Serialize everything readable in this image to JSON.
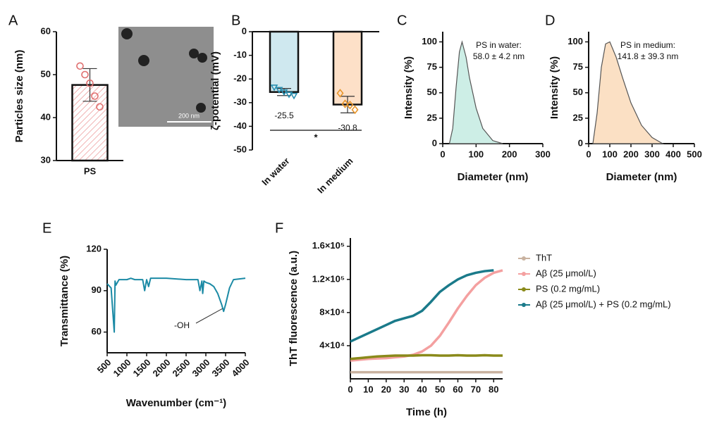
{
  "chart_data": [
    {
      "type": "bar",
      "label": "A",
      "categories": [
        "PS"
      ],
      "values": [
        47.6
      ],
      "errors": [
        3.8
      ],
      "points": [
        [
          52,
          50,
          48,
          45,
          42.5
        ]
      ],
      "markers": [
        "circle"
      ],
      "point_colors": [
        "#e07070"
      ],
      "color": "#e88080",
      "ylabel": "Particles size (nm)",
      "ylim": [
        30,
        60
      ],
      "yticks": [
        30,
        40,
        50,
        60
      ],
      "scale_bar": "200 nm"
    },
    {
      "type": "bar",
      "label": "B",
      "categories": [
        "In water",
        "In medium"
      ],
      "values": [
        -25.5,
        -30.8
      ],
      "errors": [
        1.5,
        3.5
      ],
      "points": [
        [
          -23.5,
          -24.5,
          -25.5,
          -26.5,
          -27
        ],
        [
          -26,
          -30.5,
          -31,
          -33
        ]
      ],
      "markers": [
        "triangle",
        "diamond"
      ],
      "colors": [
        "#cfe8ef",
        "#fde0c8"
      ],
      "point_colors": [
        "#2a8fb0",
        "#e8952a"
      ],
      "ylabel": "ζ-potential (mV)",
      "ylim": [
        -50,
        0
      ],
      "yticks": [
        0,
        -10,
        -20,
        -30,
        -40,
        -50
      ],
      "significance": "*"
    },
    {
      "type": "area",
      "label": "C",
      "x": [
        20,
        30,
        40,
        50,
        58,
        70,
        80,
        100,
        120,
        150,
        180
      ],
      "values": [
        0,
        15,
        55,
        90,
        100,
        85,
        65,
        35,
        15,
        3,
        0
      ],
      "color": "#cdeee6",
      "xlabel": "Diameter (nm)",
      "ylabel": "Intensity (%)",
      "xlim": [
        0,
        300
      ],
      "xticks": [
        0,
        100,
        200,
        300
      ],
      "ylim": [
        0,
        110
      ],
      "yticks": [
        0,
        25,
        50,
        75,
        100
      ],
      "annotation": [
        "PS in water:",
        "58.0 ± 4.2 nm"
      ]
    },
    {
      "type": "area",
      "label": "D",
      "x": [
        20,
        40,
        60,
        80,
        100,
        130,
        160,
        200,
        250,
        300,
        350
      ],
      "values": [
        0,
        30,
        75,
        98,
        100,
        85,
        65,
        40,
        18,
        6,
        0
      ],
      "color": "#fbe0c4",
      "xlabel": "Diameter (nm)",
      "ylabel": "Intensity (%)",
      "xlim": [
        0,
        500
      ],
      "xticks": [
        0,
        100,
        200,
        300,
        400,
        500
      ],
      "ylim": [
        0,
        110
      ],
      "yticks": [
        0,
        25,
        50,
        75,
        100
      ],
      "annotation": [
        "PS in medium:",
        "141.8 ± 39.3 nm"
      ]
    },
    {
      "type": "line",
      "label": "E",
      "x": [
        500,
        600,
        680,
        700,
        720,
        800,
        1000,
        1100,
        1200,
        1400,
        1450,
        1500,
        1550,
        1600,
        2000,
        2500,
        2800,
        2850,
        2900,
        2920,
        2950,
        3000,
        3100,
        3200,
        3300,
        3400,
        3450,
        3500,
        3600,
        3700,
        4000
      ],
      "series": [
        {
          "color": "#1b8aa5",
          "values": [
            95,
            92,
            60,
            97,
            94,
            98,
            98,
            99,
            98,
            98,
            90,
            98,
            93,
            99,
            99,
            98,
            98,
            90,
            97,
            88,
            97,
            96,
            95,
            93,
            88,
            80,
            75,
            80,
            92,
            98,
            99
          ]
        }
      ],
      "xlabel": "Wavenumber (cm⁻¹)",
      "ylabel": "Transmittance (%)",
      "xlim": [
        500,
        4000
      ],
      "xticks": [
        500,
        1000,
        1500,
        2000,
        2500,
        3000,
        3500,
        4000
      ],
      "ylim": [
        45,
        120
      ],
      "yticks": [
        60,
        90,
        120
      ],
      "annotation": [
        "-OH"
      ]
    },
    {
      "type": "line",
      "label": "F",
      "x": [
        0,
        5,
        10,
        15,
        20,
        25,
        30,
        35,
        40,
        45,
        50,
        55,
        60,
        65,
        70,
        75,
        80,
        85
      ],
      "series": [
        {
          "name": "ThT",
          "color": "#c9b2a0",
          "values": [
            8000,
            8000,
            8000,
            8000,
            8000,
            8000,
            8000,
            8000,
            8000,
            8000,
            8000,
            8000,
            8000,
            8000,
            8000,
            8000,
            8000,
            8000
          ]
        },
        {
          "name": "Aβ (25 μmol/L)",
          "color": "#f4a0a0",
          "values": [
            22000,
            23000,
            24000,
            24500,
            25000,
            26000,
            27000,
            29000,
            33000,
            40000,
            52000,
            68000,
            85000,
            100000,
            113000,
            122000,
            128000,
            131000
          ]
        },
        {
          "name": "PS (0.2 mg/mL)",
          "color": "#8a8a1a",
          "values": [
            24000,
            25000,
            26000,
            27000,
            27500,
            28000,
            28000,
            28000,
            28500,
            28500,
            28000,
            28000,
            28500,
            28000,
            28000,
            28500,
            28000,
            28000
          ]
        },
        {
          "name": "Aβ (25 μmol/L) + PS (0.2 mg/mL)",
          "color": "#1a7a8a",
          "values": [
            45000,
            50000,
            55000,
            60000,
            65000,
            70000,
            73000,
            76000,
            82000,
            93000,
            105000,
            113000,
            120000,
            125000,
            128000,
            130000,
            131000,
            null
          ]
        }
      ],
      "xlabel": "Time (h)",
      "ylabel": "ThT fluorescence (a.u.)",
      "xlim": [
        0,
        85
      ],
      "xticks": [
        0,
        10,
        20,
        30,
        40,
        50,
        60,
        70,
        80
      ],
      "ylim": [
        0,
        170000
      ],
      "yticks": [
        {
          "value": 40000,
          "label": "4×10⁴"
        },
        {
          "value": 80000,
          "label": "8×10⁴"
        },
        {
          "value": 120000,
          "label": "1.2×10⁵"
        },
        {
          "value": 160000,
          "label": "1.6×10⁵"
        }
      ]
    }
  ]
}
